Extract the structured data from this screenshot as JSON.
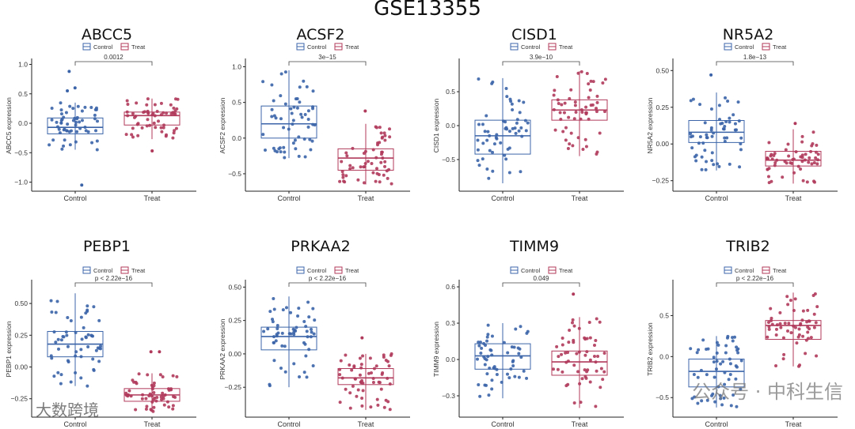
{
  "watermarks": [
    "公众号 · 中科生信",
    "大数跨境"
  ],
  "chart_data": {
    "type": "boxplot",
    "title": "GSE13355",
    "legend": {
      "entries": [
        "Control",
        "Treat"
      ],
      "placement": "top"
    },
    "colors": {
      "Control": "#3b64a8",
      "Treat": "#b03a5b"
    },
    "categories": [
      "Control",
      "Treat"
    ],
    "panels": [
      {
        "title": "ABCC5",
        "ylabel": "ABCC5 expression",
        "ylim": [
          -1.1,
          1.02
        ],
        "yticks": [
          -1.0,
          -0.5,
          0.0,
          0.5,
          1.0
        ],
        "tick_labels": [
          "−1.0",
          "−0.5",
          "0.0",
          "0.5",
          "1.0"
        ],
        "pvalue": "0.0012",
        "groups": [
          {
            "name": "Control",
            "stats": [
              -0.45,
              -0.18,
              -0.07,
              0.09,
              0.35
            ],
            "outliers": [
              0.88,
              0.6,
              0.55,
              -1.05
            ]
          },
          {
            "name": "Treat",
            "stats": [
              -0.27,
              -0.03,
              0.13,
              0.19,
              0.42
            ],
            "outliers": [
              -0.47
            ]
          }
        ]
      },
      {
        "title": "ACSF2",
        "ylabel": "ACSF2 expression",
        "ylim": [
          -0.7,
          1.05
        ],
        "yticks": [
          -0.5,
          0.0,
          0.5,
          1.0
        ],
        "tick_labels": [
          "−0.5",
          "0.0",
          "0.5",
          "1.0"
        ],
        "pvalue": "3e−15",
        "groups": [
          {
            "name": "Control",
            "stats": [
              -0.28,
              0.0,
              0.2,
              0.45,
              0.95
            ],
            "outliers": []
          },
          {
            "name": "Treat",
            "stats": [
              -0.65,
              -0.45,
              -0.28,
              -0.15,
              0.2
            ],
            "outliers": [
              0.38
            ]
          }
        ]
      },
      {
        "title": "CISD1",
        "ylabel": "CISD1 expression",
        "ylim": [
          -0.92,
          0.92
        ],
        "yticks": [
          -0.5,
          0.0,
          0.5
        ],
        "tick_labels": [
          "−0.5",
          "0.0",
          "0.5"
        ],
        "pvalue": "3.9e−10",
        "groups": [
          {
            "name": "Control",
            "stats": [
              -0.85,
              -0.42,
              -0.15,
              0.08,
              0.7
            ],
            "outliers": []
          },
          {
            "name": "Treat",
            "stats": [
              -0.45,
              0.08,
              0.23,
              0.38,
              0.8
            ],
            "outliers": []
          }
        ]
      },
      {
        "title": "NR5A2",
        "ylabel": "NR5A2 expression",
        "ylim": [
          -0.3,
          0.55
        ],
        "yticks": [
          -0.25,
          0.0,
          0.25,
          0.5
        ],
        "tick_labels": [
          "−0.25",
          "0.00",
          "0.25",
          "0.50"
        ],
        "pvalue": "1.8e−13",
        "groups": [
          {
            "name": "Control",
            "stats": [
              -0.18,
              0.01,
              0.08,
              0.16,
              0.35
            ],
            "outliers": [
              0.47
            ]
          },
          {
            "name": "Treat",
            "stats": [
              -0.27,
              -0.15,
              -0.11,
              -0.05,
              0.1
            ],
            "outliers": [
              0.14
            ]
          }
        ]
      },
      {
        "title": "PEBP1",
        "ylabel": "PEBP1 expression",
        "ylim": [
          -0.37,
          0.65
        ],
        "yticks": [
          -0.25,
          0.0,
          0.25,
          0.5
        ],
        "tick_labels": [
          "−0.25",
          "0.00",
          "0.25",
          "0.50"
        ],
        "pvalue": "p < 2.22e−16",
        "groups": [
          {
            "name": "Control",
            "stats": [
              -0.15,
              0.08,
              0.18,
              0.28,
              0.58
            ],
            "outliers": []
          },
          {
            "name": "Treat",
            "stats": [
              -0.35,
              -0.27,
              -0.22,
              -0.17,
              -0.05
            ],
            "outliers": [
              0.12,
              0.12
            ]
          }
        ]
      },
      {
        "title": "PRKAA2",
        "ylabel": "PRKAA2 expression",
        "ylim": [
          -0.45,
          0.52
        ],
        "yticks": [
          -0.25,
          0.0,
          0.25,
          0.5
        ],
        "tick_labels": [
          "−0.25",
          "0.00",
          "0.25",
          "0.50"
        ],
        "pvalue": "p < 2.22e−16",
        "groups": [
          {
            "name": "Control",
            "stats": [
              -0.25,
              0.03,
              0.13,
              0.2,
              0.43
            ],
            "outliers": []
          },
          {
            "name": "Treat",
            "stats": [
              -0.42,
              -0.23,
              -0.18,
              -0.11,
              0.0
            ],
            "outliers": [
              0.12
            ]
          }
        ]
      },
      {
        "title": "TIMM9",
        "ylabel": "TIMM9 expression",
        "ylim": [
          -0.45,
          0.62
        ],
        "yticks": [
          -0.3,
          0.0,
          0.3,
          0.6
        ],
        "tick_labels": [
          "−0.3",
          "0.0",
          "0.3",
          "0.6"
        ],
        "pvalue": "0.049",
        "groups": [
          {
            "name": "Control",
            "stats": [
              -0.32,
              -0.08,
              0.03,
              0.13,
              0.3
            ],
            "outliers": []
          },
          {
            "name": "Treat",
            "stats": [
              -0.4,
              -0.13,
              -0.02,
              0.07,
              0.35
            ],
            "outliers": [
              0.54
            ]
          }
        ]
      },
      {
        "title": "TRIB2",
        "ylabel": "TRIB2 expression",
        "ylim": [
          -0.7,
          0.88
        ],
        "yticks": [
          -0.5,
          0.0,
          0.5
        ],
        "tick_labels": [
          "−0.5",
          "0.0",
          "0.5"
        ],
        "pvalue": "p < 2.22e−16",
        "groups": [
          {
            "name": "Control",
            "stats": [
              -0.62,
              -0.37,
              -0.18,
              -0.03,
              0.25
            ],
            "outliers": []
          },
          {
            "name": "Treat",
            "stats": [
              -0.12,
              0.21,
              0.38,
              0.44,
              0.78
            ],
            "outliers": []
          }
        ]
      }
    ]
  }
}
